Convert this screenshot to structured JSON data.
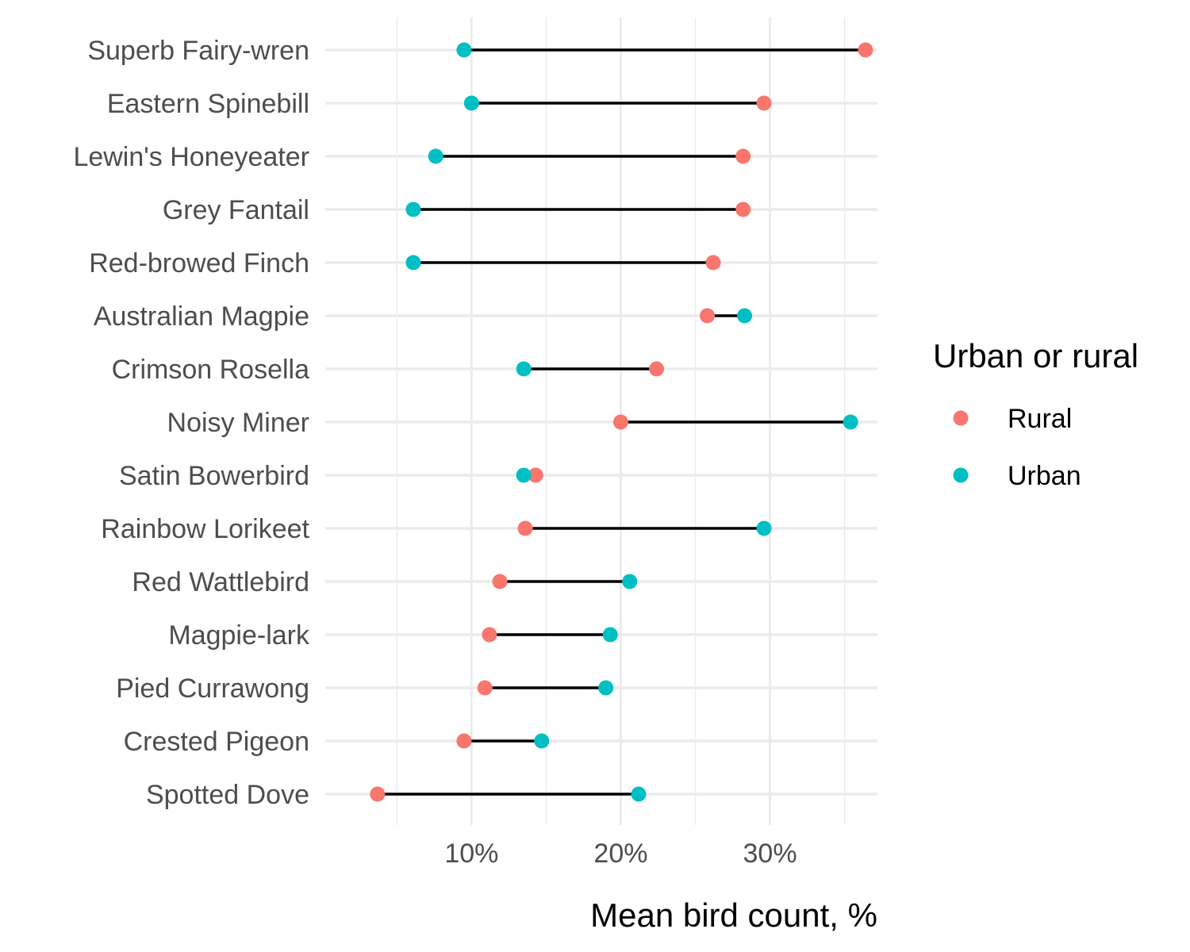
{
  "chart_data": {
    "type": "dumbbell",
    "title": "",
    "xlabel": "Mean bird count, %",
    "ylabel": "",
    "xlim": [
      0.2,
      37.2
    ],
    "x_ticks": [
      {
        "value": 10,
        "label": "10%"
      },
      {
        "value": 20,
        "label": "20%"
      },
      {
        "value": 30,
        "label": "30%"
      }
    ],
    "x_minor_ticks": [
      5,
      15,
      25,
      35
    ],
    "grid": true,
    "legend": {
      "title": "Urban or rural",
      "position": "right",
      "items": [
        {
          "key": "rural",
          "label": "Rural",
          "color": "#F8766D"
        },
        {
          "key": "urban",
          "label": "Urban",
          "color": "#00BFC4"
        }
      ]
    },
    "segment_color": "#000000",
    "categories": [
      "Superb Fairy-wren",
      "Eastern Spinebill",
      "Lewin's Honeyeater",
      "Grey Fantail",
      "Red-browed Finch",
      "Australian Magpie",
      "Crimson Rosella",
      "Noisy Miner",
      "Satin Bowerbird",
      "Rainbow Lorikeet",
      "Red Wattlebird",
      "Magpie-lark",
      "Pied Currawong",
      "Crested Pigeon",
      "Spotted Dove"
    ],
    "series": [
      {
        "name": "Rural",
        "key": "rural",
        "values": [
          36.4,
          29.6,
          28.2,
          28.2,
          26.2,
          25.8,
          22.4,
          20.0,
          14.3,
          13.6,
          11.9,
          11.2,
          10.9,
          9.5,
          3.7
        ]
      },
      {
        "name": "Urban",
        "key": "urban",
        "values": [
          9.5,
          10.0,
          7.6,
          6.1,
          6.1,
          28.3,
          13.5,
          35.4,
          13.5,
          29.6,
          20.6,
          19.3,
          19.0,
          14.7,
          21.2
        ]
      }
    ]
  }
}
